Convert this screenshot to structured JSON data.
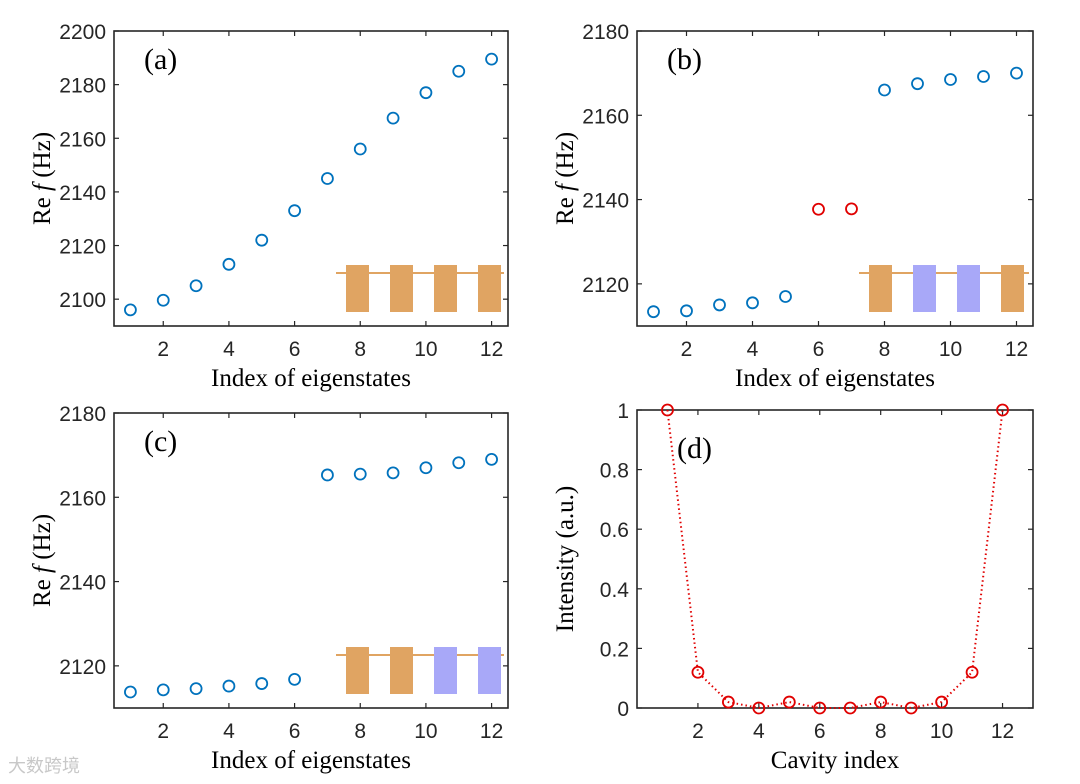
{
  "colors": {
    "blue": "#0072BD",
    "red": "#E00000",
    "orange": "#E0A462",
    "lavender": "#A8A8F8",
    "axis": "#262626"
  },
  "watermark": "大数跨境",
  "chart_data": [
    {
      "type": "scatter",
      "panel_label": "(a)",
      "xlabel": "Index of eigenstates",
      "ylabel_prefix": "Re ",
      "ylabel_italic": "f",
      "ylabel_suffix": " (Hz)",
      "xlim": [
        0.5,
        12.5
      ],
      "ylim": [
        2090,
        2200
      ],
      "xticks": [
        2,
        4,
        6,
        8,
        10,
        12
      ],
      "yticks": [
        2100,
        2120,
        2140,
        2160,
        2180,
        2200
      ],
      "x": [
        1,
        2,
        3,
        4,
        5,
        6,
        7,
        8,
        9,
        10,
        11,
        12
      ],
      "y": [
        2096,
        2099.6,
        2105,
        2113,
        2122,
        2133,
        2145,
        2156,
        2167.5,
        2177,
        2185,
        2189.5
      ],
      "point_colors": [
        "blue",
        "blue",
        "blue",
        "blue",
        "blue",
        "blue",
        "blue",
        "blue",
        "blue",
        "blue",
        "blue",
        "blue"
      ],
      "inset_cavities": [
        "orange",
        "orange",
        "orange",
        "orange"
      ]
    },
    {
      "type": "scatter",
      "panel_label": "(b)",
      "xlabel": "Index of eigenstates",
      "ylabel_prefix": "Re ",
      "ylabel_italic": "f",
      "ylabel_suffix": " (Hz)",
      "xlim": [
        0.5,
        12.5
      ],
      "ylim": [
        2110,
        2180
      ],
      "xticks": [
        2,
        4,
        6,
        8,
        10,
        12
      ],
      "yticks": [
        2120,
        2140,
        2160,
        2180
      ],
      "x": [
        1,
        2,
        3,
        4,
        5,
        6,
        7,
        8,
        9,
        10,
        11,
        12
      ],
      "y": [
        2113.4,
        2113.6,
        2115,
        2115.5,
        2117,
        2137.7,
        2137.8,
        2166,
        2167.5,
        2168.5,
        2169.2,
        2170
      ],
      "point_colors": [
        "blue",
        "blue",
        "blue",
        "blue",
        "blue",
        "red",
        "red",
        "blue",
        "blue",
        "blue",
        "blue",
        "blue"
      ],
      "inset_cavities": [
        "orange",
        "lavender",
        "lavender",
        "orange"
      ]
    },
    {
      "type": "scatter",
      "panel_label": "(c)",
      "xlabel": "Index of eigenstates",
      "ylabel_prefix": "Re ",
      "ylabel_italic": "f",
      "ylabel_suffix": " (Hz)",
      "xlim": [
        0.5,
        12.5
      ],
      "ylim": [
        2110,
        2180
      ],
      "xticks": [
        2,
        4,
        6,
        8,
        10,
        12
      ],
      "yticks": [
        2120,
        2140,
        2160,
        2180
      ],
      "x": [
        1,
        2,
        3,
        4,
        5,
        6,
        7,
        8,
        9,
        10,
        11,
        12
      ],
      "y": [
        2113.8,
        2114.3,
        2114.6,
        2115.2,
        2115.8,
        2116.8,
        2165.3,
        2165.5,
        2165.8,
        2167,
        2168.2,
        2169
      ],
      "point_colors": [
        "blue",
        "blue",
        "blue",
        "blue",
        "blue",
        "blue",
        "blue",
        "blue",
        "blue",
        "blue",
        "blue",
        "blue"
      ],
      "inset_cavities": [
        "orange",
        "orange",
        "lavender",
        "lavender"
      ]
    },
    {
      "type": "line",
      "panel_label": "(d)",
      "xlabel": "Cavity index",
      "ylabel_prefix": "Intensity (a.u.)",
      "ylabel_italic": "",
      "ylabel_suffix": "",
      "xlim": [
        0,
        13
      ],
      "ylim": [
        0,
        1
      ],
      "xticks": [
        2,
        4,
        6,
        8,
        10,
        12
      ],
      "yticks": [
        0,
        0.2,
        0.4,
        0.6,
        0.8,
        1
      ],
      "ytick_labels": [
        "0",
        "0.2",
        "0.4",
        "0.6",
        "0.8",
        "1"
      ],
      "x": [
        1,
        2,
        3,
        4,
        5,
        6,
        7,
        8,
        9,
        10,
        11,
        12
      ],
      "y": [
        1,
        0.12,
        0.02,
        0,
        0.02,
        0,
        0,
        0.02,
        0,
        0.02,
        0.12,
        1
      ],
      "line_style": "dotted",
      "marker": "circle",
      "color": "red"
    }
  ]
}
